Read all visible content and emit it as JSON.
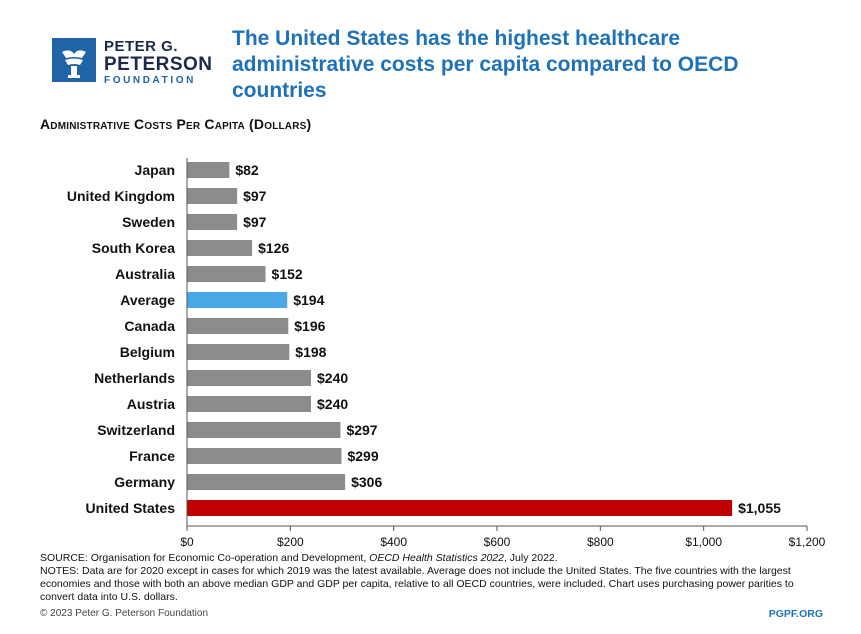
{
  "brand": {
    "name_line1": "PETER G.",
    "name_line2": "PETERSON",
    "name_line3": "FOUNDATION",
    "color": "#1f63a8"
  },
  "title": "The United States has the highest healthcare administrative costs per capita compared to OECD countries",
  "subtitle": "Administrative Costs Per Capita (Dollars)",
  "chart_data": {
    "type": "bar",
    "orientation": "horizontal",
    "categories": [
      "Japan",
      "United Kingdom",
      "Sweden",
      "South Korea",
      "Australia",
      "Average",
      "Canada",
      "Belgium",
      "Netherlands",
      "Austria",
      "Switzerland",
      "France",
      "Germany",
      "United States"
    ],
    "values": [
      82,
      97,
      97,
      126,
      152,
      194,
      196,
      198,
      240,
      240,
      297,
      299,
      306,
      1055
    ],
    "data_labels": [
      "$82",
      "$97",
      "$97",
      "$126",
      "$152",
      "$194",
      "$196",
      "$198",
      "$240",
      "$240",
      "$297",
      "$299",
      "$306",
      "$1,055"
    ],
    "xlim": [
      0,
      1200
    ],
    "xticks": [
      0,
      200,
      400,
      600,
      800,
      1000,
      1200
    ],
    "xtick_labels": [
      "$0",
      "$200",
      "$400",
      "$600",
      "$800",
      "$1,000",
      "$1,200"
    ],
    "colors": {
      "default": "#8c8c8c",
      "Average": "#4aa8e8",
      "United States": "#c00000"
    },
    "grid": false,
    "legend": "none"
  },
  "source": {
    "label": "SOURCE: Organisation for Economic Co-operation and Development, ",
    "publication": "OECD Health Statistics 2022",
    "date": ", July 2022.",
    "notes": "NOTES: Data are for 2020 except in cases for which 2019 was the latest available. Average does not include the United States. The five countries with the largest economies and those with both an above median GDP and GDP per capita, relative to all OECD countries, were included. Chart uses purchasing power parities to convert data into U.S. dollars."
  },
  "copyright": "© 2023 Peter G. Peterson Foundation",
  "site": "PGPF.ORG"
}
